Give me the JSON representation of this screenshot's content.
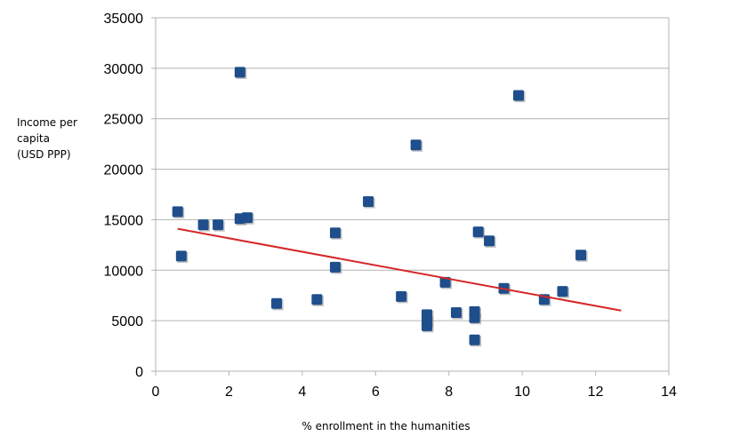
{
  "chart_data": {
    "type": "scatter",
    "title": "",
    "xlabel": "% enrollment in the humanities",
    "ylabel_lines": [
      "Income per",
      "capita",
      "(USD PPP)"
    ],
    "xlim": [
      0,
      14
    ],
    "ylim": [
      0,
      35000
    ],
    "x_ticks": [
      0,
      2,
      4,
      6,
      8,
      10,
      12,
      14
    ],
    "y_ticks": [
      0,
      5000,
      10000,
      15000,
      20000,
      25000,
      30000,
      35000
    ],
    "grid": "horizontal",
    "legend": "none",
    "marker_color": "#1f4e8c",
    "trendline_color": "#d62728",
    "series": [
      {
        "x": [
          0.6,
          0.7,
          1.3,
          1.7,
          2.3,
          2.3,
          2.5,
          3.3,
          4.4,
          4.9,
          4.9,
          5.8,
          6.7,
          7.1,
          7.4,
          7.4,
          7.4,
          7.9,
          8.2,
          8.7,
          8.7,
          8.7,
          8.8,
          9.1,
          9.5,
          9.9,
          10.6,
          11.1,
          11.6
        ],
        "y": [
          15800,
          11400,
          14500,
          14500,
          29600,
          15100,
          15200,
          6700,
          7100,
          13700,
          10300,
          16800,
          7400,
          22400,
          5600,
          5000,
          4500,
          8800,
          5800,
          5900,
          5300,
          3100,
          13800,
          12900,
          8200,
          27300,
          7100,
          7900,
          11500
        ]
      }
    ],
    "trendline": {
      "x": [
        0.6,
        12.7
      ],
      "y": [
        14100,
        6000
      ]
    }
  }
}
